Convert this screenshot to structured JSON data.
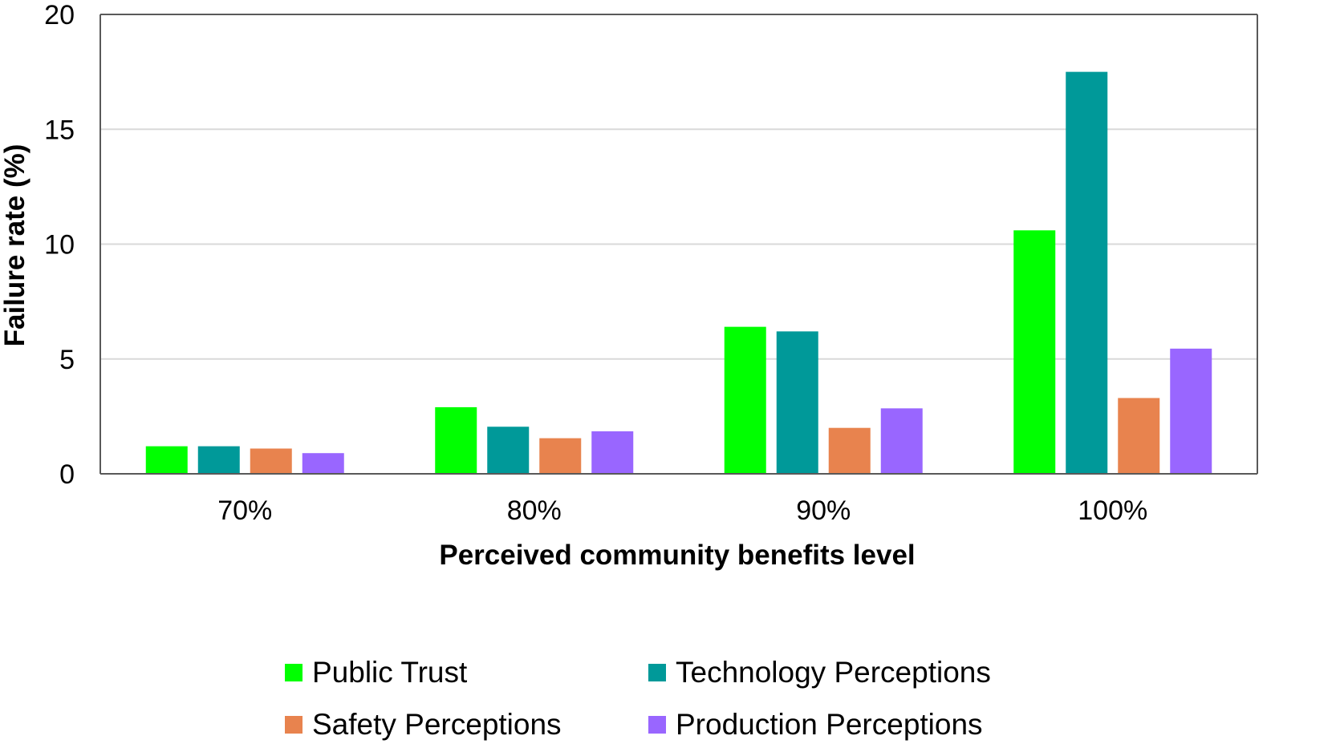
{
  "chart_data": {
    "type": "bar",
    "categories": [
      "70%",
      "80%",
      "90%",
      "100%"
    ],
    "series": [
      {
        "name": "Public Trust",
        "color": "#00ff00",
        "values": [
          1.2,
          2.9,
          6.4,
          10.6
        ]
      },
      {
        "name": "Technology Perceptions",
        "color": "#009999",
        "values": [
          1.2,
          2.05,
          6.2,
          17.5
        ]
      },
      {
        "name": "Safety Perceptions",
        "color": "#e8834e",
        "values": [
          1.1,
          1.55,
          2.0,
          3.3
        ]
      },
      {
        "name": "Production Perceptions",
        "color": "#9966ff",
        "values": [
          0.9,
          1.85,
          2.85,
          5.45
        ]
      }
    ],
    "xlabel": "Perceived community benefits level",
    "ylabel": "Failure rate (%)",
    "ylim": [
      0,
      20
    ],
    "yticks": [
      "0",
      "5",
      "10",
      "15",
      "20"
    ],
    "grid": true,
    "legend_position": "bottom"
  }
}
